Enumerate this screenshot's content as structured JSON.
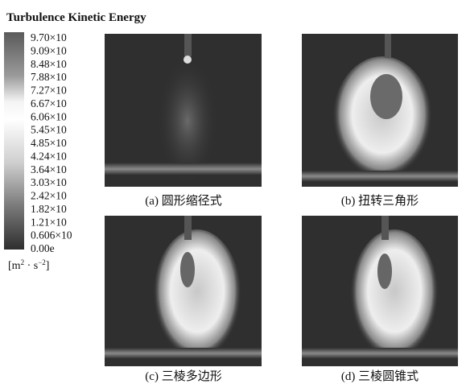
{
  "title": "Turbulence Kinetic Energy",
  "colorbar": {
    "labels": [
      {
        "text": "9.70×10",
        "sup": "−2"
      },
      {
        "text": "9.09×10",
        "sup": "−2"
      },
      {
        "text": "8.48×10",
        "sup": "−2"
      },
      {
        "text": "7.88×10",
        "sup": "−2"
      },
      {
        "text": "7.27×10",
        "sup": "−2"
      },
      {
        "text": "6.67×10",
        "sup": "−2"
      },
      {
        "text": "6.06×10",
        "sup": "−2"
      },
      {
        "text": "5.45×10",
        "sup": "−2"
      },
      {
        "text": "4.85×10",
        "sup": "−2"
      },
      {
        "text": "4.24×10",
        "sup": "−2"
      },
      {
        "text": "3.64×10",
        "sup": "−2"
      },
      {
        "text": "3.03×10",
        "sup": "−2"
      },
      {
        "text": "2.42×10",
        "sup": "−2"
      },
      {
        "text": "1.82×10",
        "sup": "−2"
      },
      {
        "text": "1.21×10",
        "sup": "−2"
      },
      {
        "text": "0.606×10",
        "sup": "−2"
      },
      {
        "text": "0.00e",
        "sup": ""
      }
    ],
    "unit": [
      {
        "text": "[m",
        "sup": "2"
      },
      {
        "text": " · s",
        "sup": "−2"
      },
      {
        "text": "]",
        "sup": ""
      }
    ]
  },
  "panels": [
    {
      "caption": "(a) 圆形缩径式"
    },
    {
      "caption": "(b) 扭转三角形"
    },
    {
      "caption": "(c) 三棱多边形"
    },
    {
      "caption": "(d) 三棱圆锥式"
    }
  ]
}
